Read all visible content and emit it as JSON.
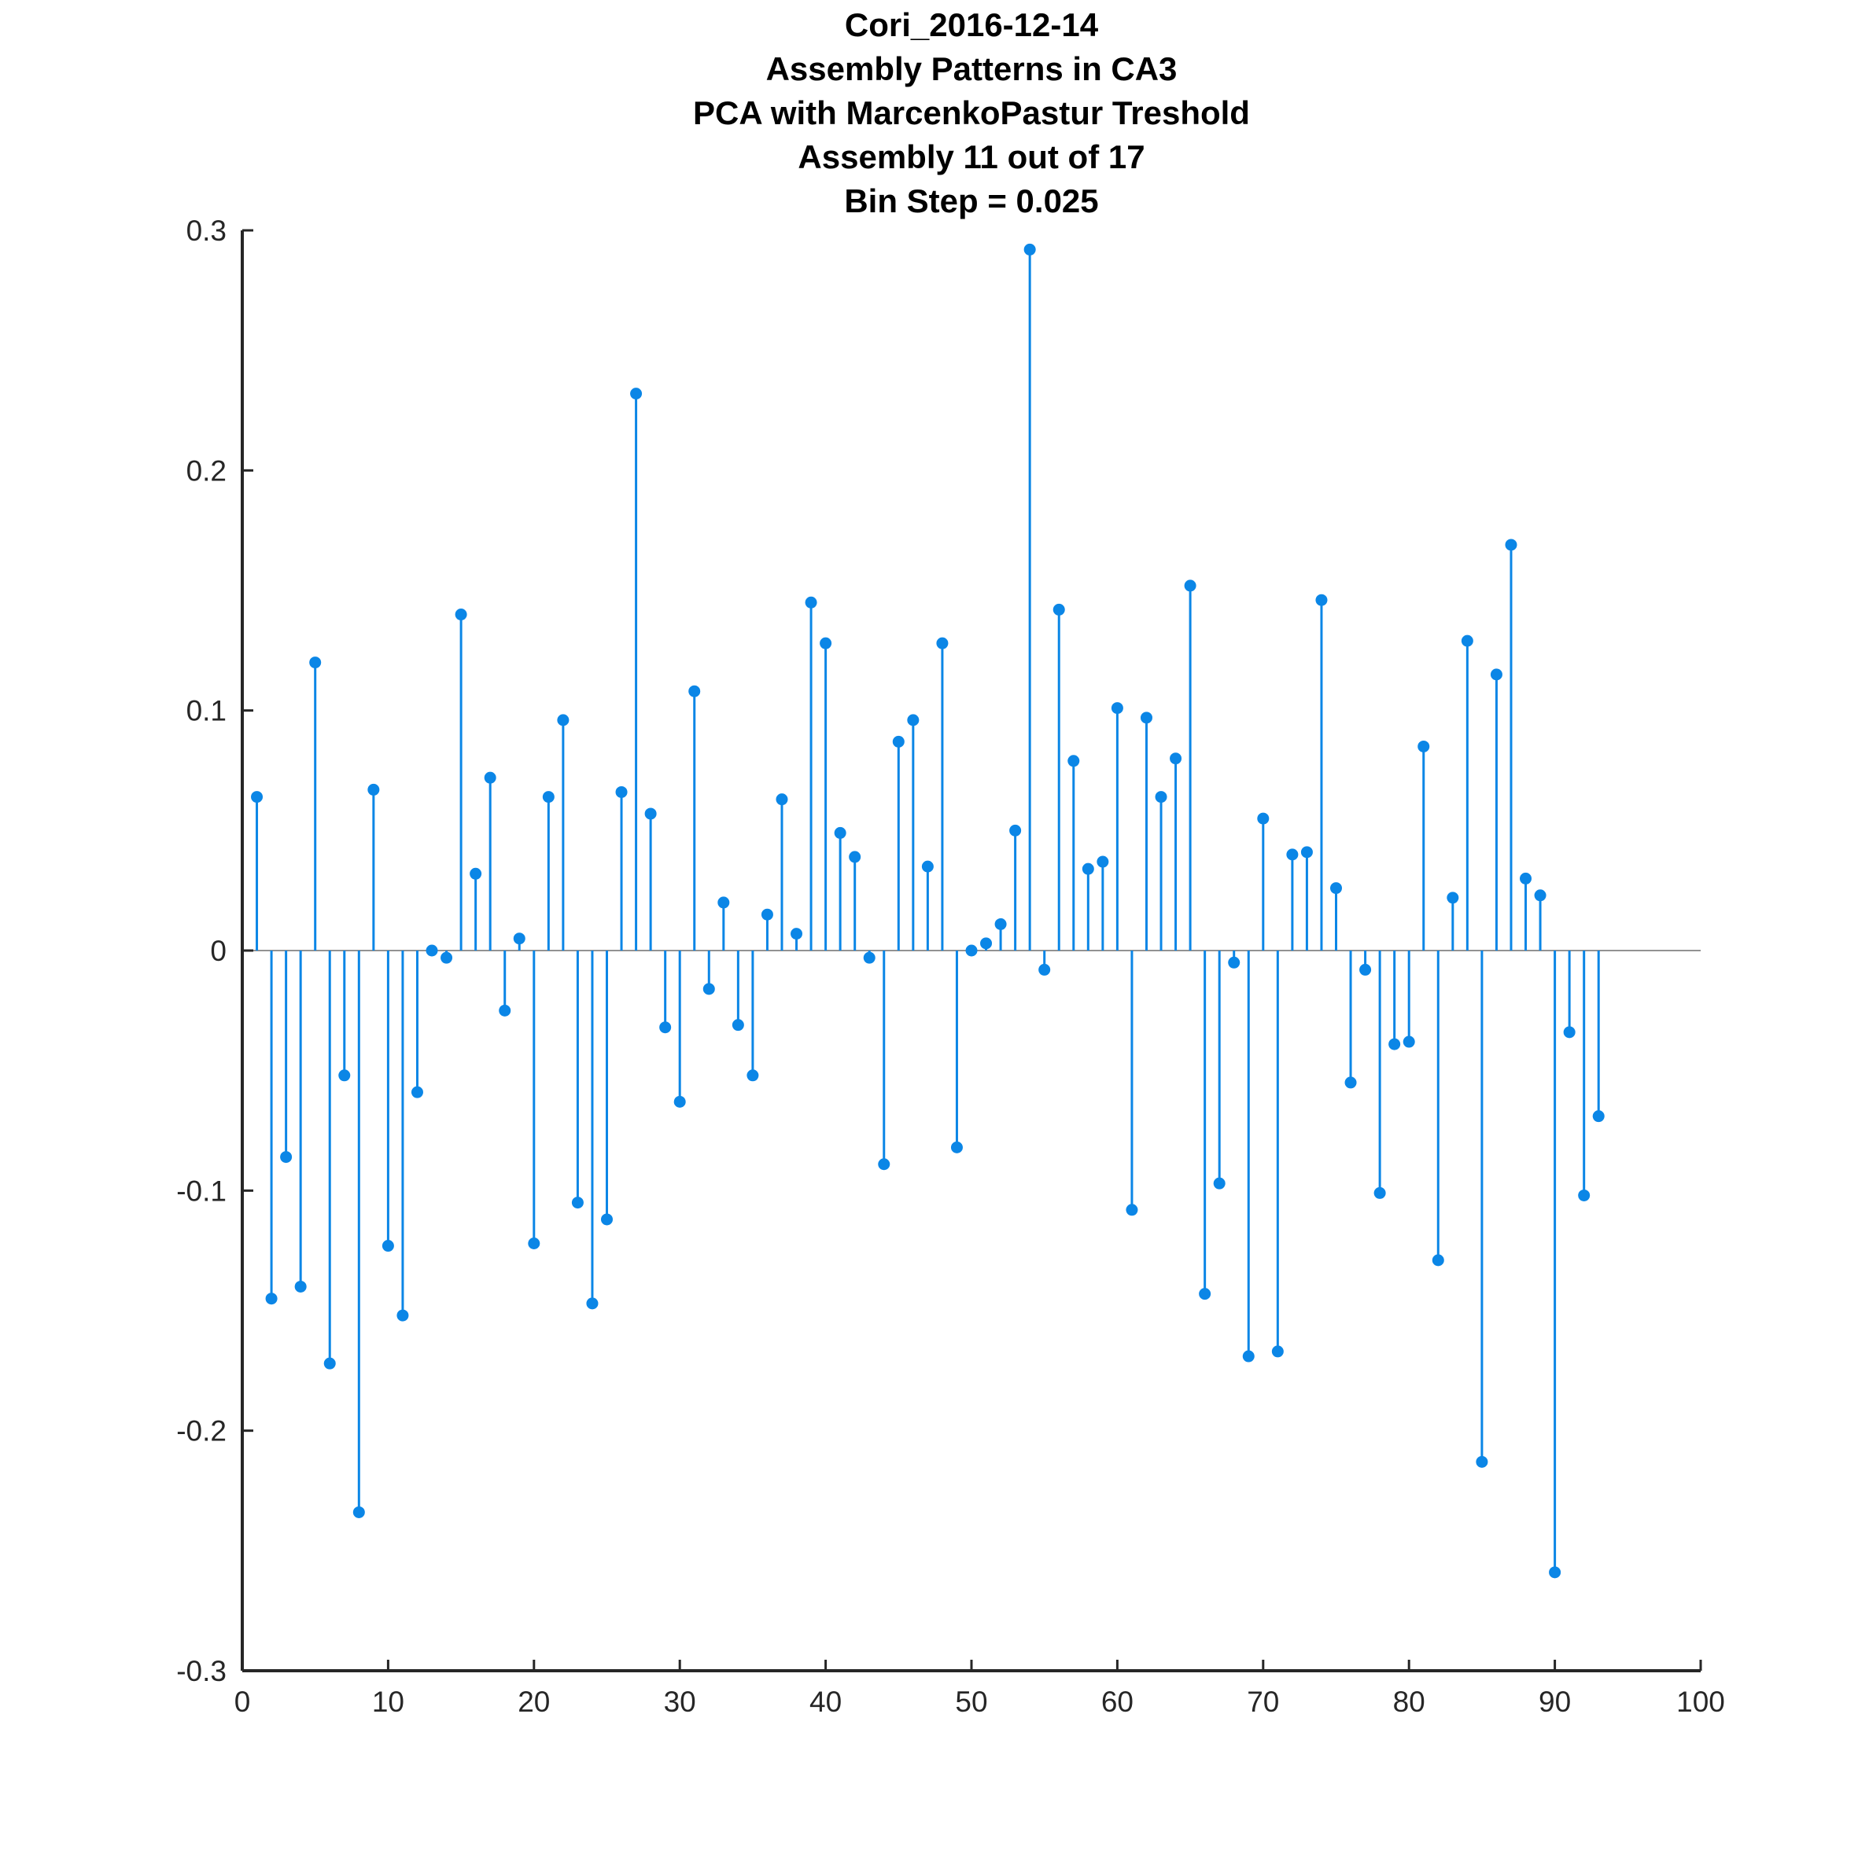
{
  "chart_data": {
    "type": "stem",
    "title_lines": [
      "Cori_2016-12-14",
      "Assembly Patterns in CA3",
      "PCA with MarcenkoPastur Treshold",
      "Assembly 11 out of 17",
      "Bin Step = 0.025"
    ],
    "xlabel": "",
    "ylabel": "",
    "xlim": [
      0,
      100
    ],
    "ylim": [
      -0.3,
      0.3
    ],
    "x_ticks": [
      "0",
      "10",
      "20",
      "30",
      "40",
      "50",
      "60",
      "70",
      "80",
      "90",
      "100"
    ],
    "y_ticks": [
      "-0.3",
      "-0.2",
      "-0.1",
      "0",
      "0.1",
      "0.2",
      "0.3"
    ],
    "grid": false,
    "baseline": 0,
    "series": [
      {
        "color": "#0b86e6",
        "x": [
          1,
          2,
          3,
          4,
          5,
          6,
          7,
          8,
          9,
          10,
          11,
          12,
          13,
          14,
          15,
          16,
          17,
          18,
          19,
          20,
          21,
          22,
          23,
          24,
          25,
          26,
          27,
          28,
          29,
          30,
          31,
          32,
          33,
          34,
          35,
          36,
          37,
          38,
          39,
          40,
          41,
          42,
          43,
          44,
          45,
          46,
          47,
          48,
          49,
          50,
          51,
          52,
          53,
          54,
          55,
          56,
          57,
          58,
          59,
          60,
          61,
          62,
          63,
          64,
          65,
          66,
          67,
          68,
          69,
          70,
          71,
          72,
          73,
          74,
          75,
          76,
          77,
          78,
          79,
          80,
          81,
          82,
          83,
          84,
          85,
          86,
          87,
          88,
          89,
          90,
          91,
          92,
          93
        ],
        "values": [
          0.064,
          -0.145,
          -0.086,
          -0.14,
          0.12,
          -0.172,
          -0.052,
          -0.234,
          0.067,
          -0.123,
          -0.152,
          -0.059,
          0.0,
          -0.003,
          0.14,
          0.032,
          0.072,
          -0.025,
          0.005,
          -0.122,
          0.064,
          0.096,
          -0.105,
          -0.147,
          -0.112,
          0.066,
          0.232,
          0.057,
          -0.032,
          -0.063,
          0.108,
          -0.016,
          0.02,
          -0.031,
          -0.052,
          0.015,
          0.063,
          0.007,
          0.145,
          0.128,
          0.049,
          0.039,
          -0.003,
          -0.089,
          0.087,
          0.096,
          0.035,
          0.128,
          -0.082,
          0.0,
          0.003,
          0.011,
          0.05,
          0.292,
          -0.008,
          0.142,
          0.079,
          0.034,
          0.037,
          0.101,
          -0.108,
          0.097,
          0.064,
          0.08,
          0.152,
          -0.143,
          -0.097,
          -0.005,
          -0.169,
          0.055,
          -0.167,
          0.04,
          0.041,
          0.146,
          0.026,
          -0.055,
          -0.008,
          -0.101,
          -0.039,
          -0.038,
          0.085,
          -0.129,
          0.022,
          0.129,
          -0.213,
          0.115,
          0.169,
          0.03,
          0.023,
          -0.259,
          -0.034,
          -0.102,
          -0.069
        ]
      }
    ]
  }
}
